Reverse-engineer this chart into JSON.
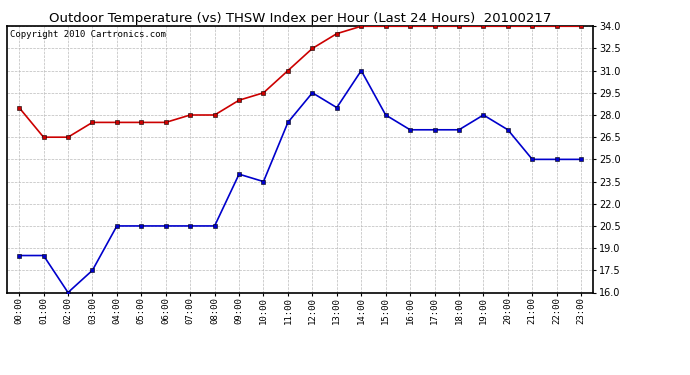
{
  "title": "Outdoor Temperature (vs) THSW Index per Hour (Last 24 Hours)  20100217",
  "copyright_text": "Copyright 2010 Cartronics.com",
  "hours": [
    "00:00",
    "01:00",
    "02:00",
    "03:00",
    "04:00",
    "05:00",
    "06:00",
    "07:00",
    "08:00",
    "09:00",
    "10:00",
    "11:00",
    "12:00",
    "13:00",
    "14:00",
    "15:00",
    "16:00",
    "17:00",
    "18:00",
    "19:00",
    "20:00",
    "21:00",
    "22:00",
    "23:00"
  ],
  "temp_red": [
    28.5,
    26.5,
    26.5,
    27.5,
    27.5,
    27.5,
    27.5,
    28.0,
    28.0,
    29.0,
    29.5,
    31.0,
    32.5,
    33.5,
    34.0,
    34.0,
    34.0,
    34.0,
    34.0,
    34.0,
    34.0,
    34.0,
    34.0,
    34.0
  ],
  "thsw_blue": [
    18.5,
    18.5,
    16.0,
    17.5,
    20.5,
    20.5,
    20.5,
    20.5,
    20.5,
    24.0,
    23.5,
    27.5,
    29.5,
    28.5,
    31.0,
    28.0,
    27.0,
    27.0,
    27.0,
    28.0,
    27.0,
    25.0,
    25.0,
    25.0
  ],
  "ylim_min": 16.0,
  "ylim_max": 34.0,
  "yticks": [
    16.0,
    17.5,
    19.0,
    20.5,
    22.0,
    23.5,
    25.0,
    26.5,
    28.0,
    29.5,
    31.0,
    32.5,
    34.0
  ],
  "red_color": "#cc0000",
  "blue_color": "#0000cc",
  "background_color": "#ffffff",
  "grid_color": "#bbbbbb",
  "title_fontsize": 9.5,
  "copyright_fontsize": 6.5,
  "marker": "s",
  "marker_size": 3,
  "line_width": 1.2
}
